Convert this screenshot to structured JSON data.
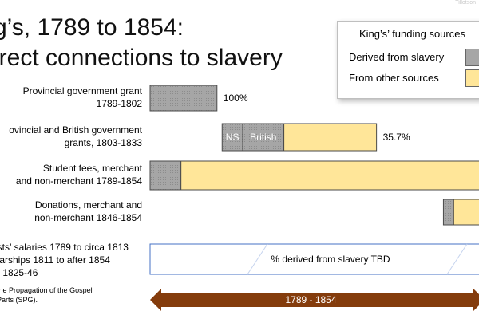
{
  "title": {
    "line1": "g’s, 1789 to 1854:",
    "line2": "irect connections to slavery"
  },
  "watermark": "Tillotson",
  "legend": {
    "title": "King’s’ funding sources",
    "items": [
      {
        "label": "Derived from slavery",
        "color": "#a6a6a6"
      },
      {
        "label": "From other sources",
        "color": "#ffe699"
      }
    ]
  },
  "rows": [
    {
      "label1": "Provincial government grant",
      "label2": "1789-1802"
    },
    {
      "label1": "ovincial and British government",
      "label2": "grants, 1803-1833"
    },
    {
      "label1": "Student fees, merchant",
      "label2": "and non-merchant 1789-1854"
    },
    {
      "label1": "Donations, merchant and",
      "label2": "non-merchant 1846-1854"
    },
    {
      "label1": "ests’ salaries 1789 to circa 1813",
      "label2": "olarships 1811 to after 1854",
      "label3": "nt 1825-46"
    }
  ],
  "footnote": {
    "line1": "the Propagation of the Gospel",
    "line2": "Parts (SPG)."
  },
  "chart_data": {
    "type": "bar",
    "colors": {
      "slavery": "#a6a6a6",
      "other": "#ffe699",
      "tbd": "#ffffff",
      "arrow": "#843c0c"
    },
    "bars": [
      {
        "segments": [
          {
            "start": 1789,
            "end": 1802,
            "kind": "slavery"
          }
        ],
        "value_label": "100%"
      },
      {
        "segments": [
          {
            "start": 1803,
            "end": 1807,
            "kind": "slavery",
            "text": "NS"
          },
          {
            "start": 1807,
            "end": 1815,
            "kind": "slavery",
            "text": "British"
          },
          {
            "start": 1815,
            "end": 1833,
            "kind": "other"
          }
        ],
        "value_label": "35.7%"
      },
      {
        "segments": [
          {
            "start": 1789,
            "end": 1795,
            "kind": "slavery"
          },
          {
            "start": 1795,
            "end": 1854,
            "kind": "other"
          }
        ]
      },
      {
        "segments": [
          {
            "start": 1846,
            "end": 1848,
            "kind": "slavery"
          },
          {
            "start": 1848,
            "end": 1854,
            "kind": "other"
          }
        ]
      },
      {
        "segments": [
          {
            "start": 1789,
            "end": 1854,
            "kind": "tbd"
          }
        ],
        "center_text": "% derived from slavery TBD"
      }
    ],
    "timeline": {
      "start": 1789,
      "end": 1854,
      "label": "1789 - 1854"
    }
  }
}
